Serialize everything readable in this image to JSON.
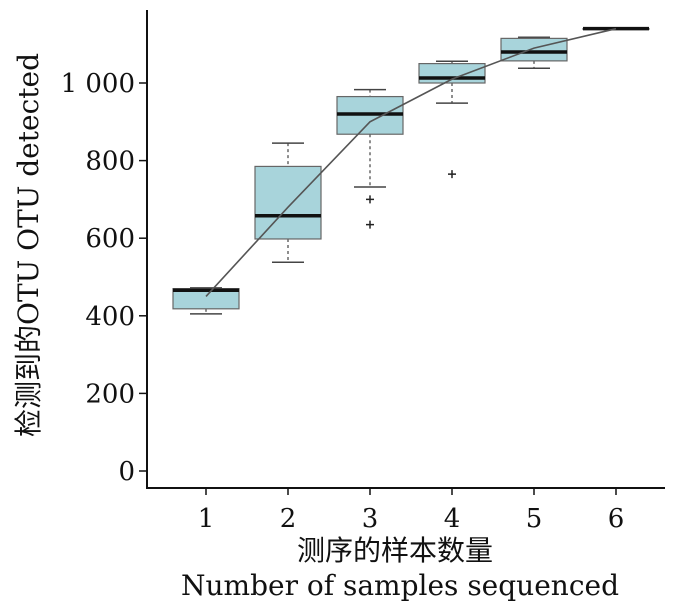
{
  "chart_data": {
    "type": "box",
    "xlabel_zh": "测序的样本数量",
    "xlabel_en": "Number of samples sequenced",
    "ylabel": "检测到的OTU OTU detected",
    "categories": [
      "1",
      "2",
      "3",
      "4",
      "5",
      "6"
    ],
    "y_ticks": [
      {
        "value": 0,
        "label": "0"
      },
      {
        "value": 200,
        "label": "200"
      },
      {
        "value": 400,
        "label": "400"
      },
      {
        "value": 600,
        "label": "600"
      },
      {
        "value": 800,
        "label": "800"
      },
      {
        "value": 1000,
        "label": "1 000"
      }
    ],
    "ylim": [
      -40,
      1190
    ],
    "grid": false,
    "box_color": "#a8d4db",
    "median_color": "#111111",
    "mean_line_color": "#555555",
    "boxes": [
      {
        "category": "1",
        "whisker_low": 405,
        "q1": 418,
        "median": 466,
        "q3": 470,
        "whisker_high": 472,
        "outliers": []
      },
      {
        "category": "2",
        "whisker_low": 538,
        "q1": 598,
        "median": 658,
        "q3": 785,
        "whisker_high": 845,
        "outliers": []
      },
      {
        "category": "3",
        "whisker_low": 732,
        "q1": 868,
        "median": 920,
        "q3": 965,
        "whisker_high": 983,
        "outliers": [
          700,
          635
        ]
      },
      {
        "category": "4",
        "whisker_low": 948,
        "q1": 1000,
        "median": 1013,
        "q3": 1050,
        "whisker_high": 1056,
        "outliers": [
          765
        ]
      },
      {
        "category": "5",
        "whisker_low": 1038,
        "q1": 1057,
        "median": 1080,
        "q3": 1115,
        "whisker_high": 1118,
        "outliers": []
      },
      {
        "category": "6",
        "whisker_low": 1140,
        "q1": 1140,
        "median": 1140,
        "q3": 1140,
        "whisker_high": 1140,
        "outliers": []
      }
    ],
    "mean_line": [
      450,
      680,
      900,
      1010,
      1090,
      1140
    ]
  }
}
